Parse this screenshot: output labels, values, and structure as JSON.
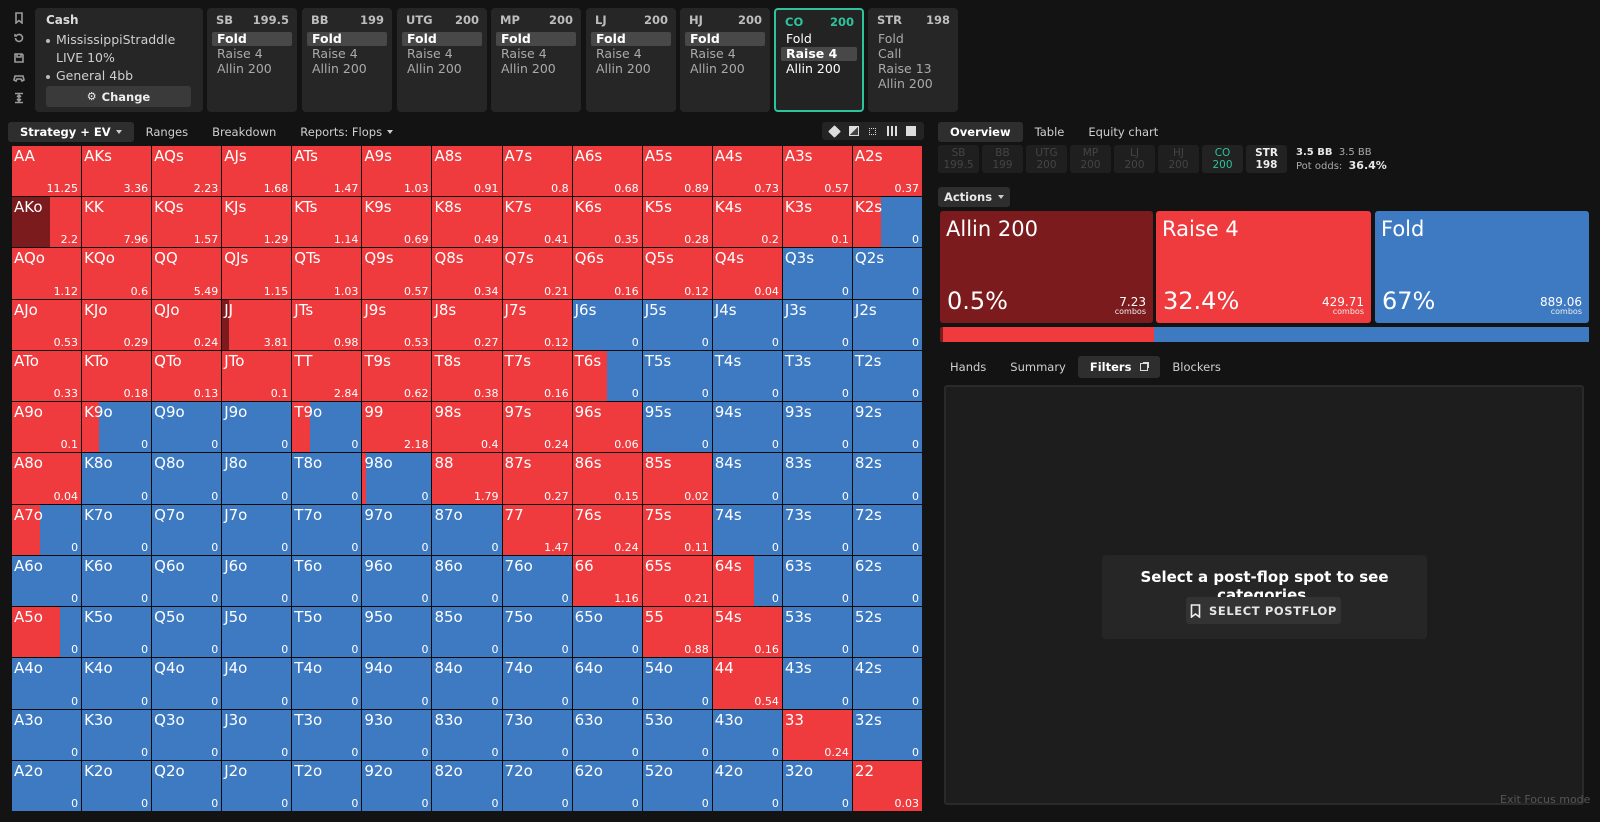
{
  "side_icons": [
    "bookmark-icon",
    "history-icon",
    "save-icon",
    "gamepad-icon",
    "collapse-icon"
  ],
  "cash": {
    "title": "Cash",
    "lines": [
      "MississippiStraddle",
      "LIVE 10%",
      "General 4bb"
    ],
    "change_label": "Change"
  },
  "positions": [
    {
      "name": "SB",
      "stack": "199.5",
      "actions": [
        "Fold",
        "Raise 4",
        "Allin 200"
      ],
      "selected": 0,
      "active": false
    },
    {
      "name": "BB",
      "stack": "199",
      "actions": [
        "Fold",
        "Raise 4",
        "Allin 200"
      ],
      "selected": 0,
      "active": false
    },
    {
      "name": "UTG",
      "stack": "200",
      "actions": [
        "Fold",
        "Raise 4",
        "Allin 200"
      ],
      "selected": 0,
      "active": false
    },
    {
      "name": "MP",
      "stack": "200",
      "actions": [
        "Fold",
        "Raise 4",
        "Allin 200"
      ],
      "selected": 0,
      "active": false
    },
    {
      "name": "LJ",
      "stack": "200",
      "actions": [
        "Fold",
        "Raise 4",
        "Allin 200"
      ],
      "selected": 0,
      "active": false
    },
    {
      "name": "HJ",
      "stack": "200",
      "actions": [
        "Fold",
        "Raise 4",
        "Allin 200"
      ],
      "selected": 0,
      "active": false
    },
    {
      "name": "CO",
      "stack": "200",
      "actions": [
        "Fold",
        "Raise 4",
        "Allin 200"
      ],
      "selected": 1,
      "active": true
    },
    {
      "name": "STR",
      "stack": "198",
      "actions": [
        "Fold",
        "Call",
        "Raise 13",
        "Allin 200"
      ],
      "selected": -1,
      "active": false
    }
  ],
  "left_tabs": [
    "Strategy + EV",
    "Ranges",
    "Breakdown",
    "Reports: Flops"
  ],
  "colors": {
    "raise": "#ef3a3e",
    "fold": "#3d7ac2",
    "allin": "#7b1b1e",
    "accent": "#2cc39d"
  },
  "grid": {
    "labels": [
      [
        "AA",
        "AKs",
        "AQs",
        "AJs",
        "ATs",
        "A9s",
        "A8s",
        "A7s",
        "A6s",
        "A5s",
        "A4s",
        "A3s",
        "A2s"
      ],
      [
        "AKo",
        "KK",
        "KQs",
        "KJs",
        "KTs",
        "K9s",
        "K8s",
        "K7s",
        "K6s",
        "K5s",
        "K4s",
        "K3s",
        "K2s"
      ],
      [
        "AQo",
        "KQo",
        "QQ",
        "QJs",
        "QTs",
        "Q9s",
        "Q8s",
        "Q7s",
        "Q6s",
        "Q5s",
        "Q4s",
        "Q3s",
        "Q2s"
      ],
      [
        "AJo",
        "KJo",
        "QJo",
        "JJ",
        "JTs",
        "J9s",
        "J8s",
        "J7s",
        "J6s",
        "J5s",
        "J4s",
        "J3s",
        "J2s"
      ],
      [
        "ATo",
        "KTo",
        "QTo",
        "JTo",
        "TT",
        "T9s",
        "T8s",
        "T7s",
        "T6s",
        "T5s",
        "T4s",
        "T3s",
        "T2s"
      ],
      [
        "A9o",
        "K9o",
        "Q9o",
        "J9o",
        "T9o",
        "99",
        "98s",
        "97s",
        "96s",
        "95s",
        "94s",
        "93s",
        "92s"
      ],
      [
        "A8o",
        "K8o",
        "Q8o",
        "J8o",
        "T8o",
        "98o",
        "88",
        "87s",
        "86s",
        "85s",
        "84s",
        "83s",
        "82s"
      ],
      [
        "A7o",
        "K7o",
        "Q7o",
        "J7o",
        "T7o",
        "97o",
        "87o",
        "77",
        "76s",
        "75s",
        "74s",
        "73s",
        "72s"
      ],
      [
        "A6o",
        "K6o",
        "Q6o",
        "J6o",
        "T6o",
        "96o",
        "86o",
        "76o",
        "66",
        "65s",
        "64s",
        "63s",
        "62s"
      ],
      [
        "A5o",
        "K5o",
        "Q5o",
        "J5o",
        "T5o",
        "95o",
        "85o",
        "75o",
        "65o",
        "55",
        "54s",
        "53s",
        "52s"
      ],
      [
        "A4o",
        "K4o",
        "Q4o",
        "J4o",
        "T4o",
        "94o",
        "84o",
        "74o",
        "64o",
        "54o",
        "44",
        "43s",
        "42s"
      ],
      [
        "A3o",
        "K3o",
        "Q3o",
        "J3o",
        "T3o",
        "93o",
        "83o",
        "73o",
        "63o",
        "53o",
        "43o",
        "33",
        "32s"
      ],
      [
        "A2o",
        "K2o",
        "Q2o",
        "J2o",
        "T2o",
        "92o",
        "82o",
        "72o",
        "62o",
        "52o",
        "42o",
        "32o",
        "22"
      ]
    ],
    "ev": [
      [
        "11.25",
        "3.36",
        "2.23",
        "1.68",
        "1.47",
        "1.03",
        "0.91",
        "0.8",
        "0.68",
        "0.89",
        "0.73",
        "0.57",
        "0.37"
      ],
      [
        "2.2",
        "7.96",
        "1.57",
        "1.29",
        "1.14",
        "0.69",
        "0.49",
        "0.41",
        "0.35",
        "0.28",
        "0.2",
        "0.1",
        "0"
      ],
      [
        "1.12",
        "0.6",
        "5.49",
        "1.15",
        "1.03",
        "0.57",
        "0.34",
        "0.21",
        "0.16",
        "0.12",
        "0.04",
        "0",
        "0"
      ],
      [
        "0.53",
        "0.29",
        "0.24",
        "3.81",
        "0.98",
        "0.53",
        "0.27",
        "0.12",
        "0",
        "0",
        "0",
        "0",
        "0"
      ],
      [
        "0.33",
        "0.18",
        "0.13",
        "0.1",
        "2.84",
        "0.62",
        "0.38",
        "0.16",
        "0",
        "0",
        "0",
        "0",
        "0"
      ],
      [
        "0.1",
        "0",
        "0",
        "0",
        "0",
        "2.18",
        "0.4",
        "0.24",
        "0.06",
        "0",
        "0",
        "0",
        "0"
      ],
      [
        "0.04",
        "0",
        "0",
        "0",
        "0",
        "0",
        "1.79",
        "0.27",
        "0.15",
        "0.02",
        "0",
        "0",
        "0"
      ],
      [
        "0",
        "0",
        "0",
        "0",
        "0",
        "0",
        "0",
        "1.47",
        "0.24",
        "0.11",
        "0",
        "0",
        "0"
      ],
      [
        "0",
        "0",
        "0",
        "0",
        "0",
        "0",
        "0",
        "0",
        "1.16",
        "0.21",
        "0",
        "0",
        "0"
      ],
      [
        "0",
        "0",
        "0",
        "0",
        "0",
        "0",
        "0",
        "0",
        "0",
        "0.88",
        "0.16",
        "0",
        "0"
      ],
      [
        "0",
        "0",
        "0",
        "0",
        "0",
        "0",
        "0",
        "0",
        "0",
        "0",
        "0.54",
        "0",
        "0"
      ],
      [
        "0",
        "0",
        "0",
        "0",
        "0",
        "0",
        "0",
        "0",
        "0",
        "0",
        "0",
        "0.24",
        "0"
      ],
      [
        "0",
        "0",
        "0",
        "0",
        "0",
        "0",
        "0",
        "0",
        "0",
        "0",
        "0",
        "0",
        "0.03"
      ]
    ],
    "raise_freq": [
      [
        1,
        1,
        1,
        1,
        1,
        1,
        1,
        1,
        1,
        1,
        1,
        1,
        1
      ],
      [
        1,
        1,
        1,
        1,
        1,
        1,
        1,
        1,
        1,
        1,
        1,
        1,
        0.4
      ],
      [
        1,
        1,
        1,
        1,
        1,
        1,
        1,
        1,
        1,
        1,
        1,
        0,
        0
      ],
      [
        1,
        1,
        1,
        1,
        1,
        1,
        1,
        1,
        0,
        0,
        0,
        0,
        0
      ],
      [
        1,
        1,
        1,
        1,
        1,
        1,
        1,
        1,
        0.5,
        0,
        0,
        0,
        0
      ],
      [
        1,
        0.25,
        0,
        0,
        0.25,
        1,
        1,
        1,
        1,
        0,
        0,
        0,
        0
      ],
      [
        1,
        0,
        0,
        0,
        0,
        0.05,
        1,
        1,
        1,
        1,
        0,
        0,
        0
      ],
      [
        0.4,
        0,
        0,
        0,
        0,
        0,
        0,
        1,
        1,
        1,
        0,
        0,
        0
      ],
      [
        0,
        0,
        0,
        0,
        0,
        0,
        0,
        0,
        1,
        1,
        0.6,
        0,
        0
      ],
      [
        0.7,
        0,
        0,
        0,
        0,
        0,
        0,
        0,
        0,
        1,
        1,
        0,
        0
      ],
      [
        0,
        0,
        0,
        0,
        0,
        0,
        0,
        0,
        0,
        0,
        1,
        0,
        0
      ],
      [
        0,
        0,
        0,
        0,
        0,
        0,
        0,
        0,
        0,
        0,
        0,
        1,
        0
      ],
      [
        0,
        0,
        0,
        0,
        0,
        0,
        0,
        0,
        0,
        0,
        0,
        0,
        1
      ]
    ],
    "allin_freq_cells": [
      {
        "row": 1,
        "col": 0,
        "freq": 0.55
      },
      {
        "row": 3,
        "col": 3,
        "freq": 0.1
      }
    ]
  },
  "right_tabs": [
    "Overview",
    "Table",
    "Equity chart"
  ],
  "stacks": [
    {
      "name": "SB",
      "value": "199.5"
    },
    {
      "name": "BB",
      "value": "199"
    },
    {
      "name": "UTG",
      "value": "200"
    },
    {
      "name": "MP",
      "value": "200"
    },
    {
      "name": "LJ",
      "value": "200"
    },
    {
      "name": "HJ",
      "value": "200"
    },
    {
      "name": "CO",
      "value": "200"
    },
    {
      "name": "STR",
      "value": "198"
    }
  ],
  "pot": {
    "bb1": "3.5 BB",
    "bb2": "3.5 BB",
    "odds_label": "Pot odds:",
    "odds": "36.4%"
  },
  "actions_label": "Actions",
  "actions": [
    {
      "name": "Allin 200",
      "pct": "0.5%",
      "combos": "7.23",
      "combos_label": "combos",
      "color": "#7b1b1e",
      "freq": 0.005
    },
    {
      "name": "Raise 4",
      "pct": "32.4%",
      "combos": "429.71",
      "combos_label": "combos",
      "color": "#ef3a3e",
      "freq": 0.324
    },
    {
      "name": "Fold",
      "pct": "67%",
      "combos": "889.06",
      "combos_label": "combos",
      "color": "#3d7ac2",
      "freq": 0.67
    }
  ],
  "bottom_tabs": [
    "Hands",
    "Summary",
    "Filters",
    "Blockers"
  ],
  "empty_msg": "Select a post-flop spot to see categories.",
  "select_postflop": "SELECT POSTFLOP",
  "exit_focus": "Exit Focus mode"
}
